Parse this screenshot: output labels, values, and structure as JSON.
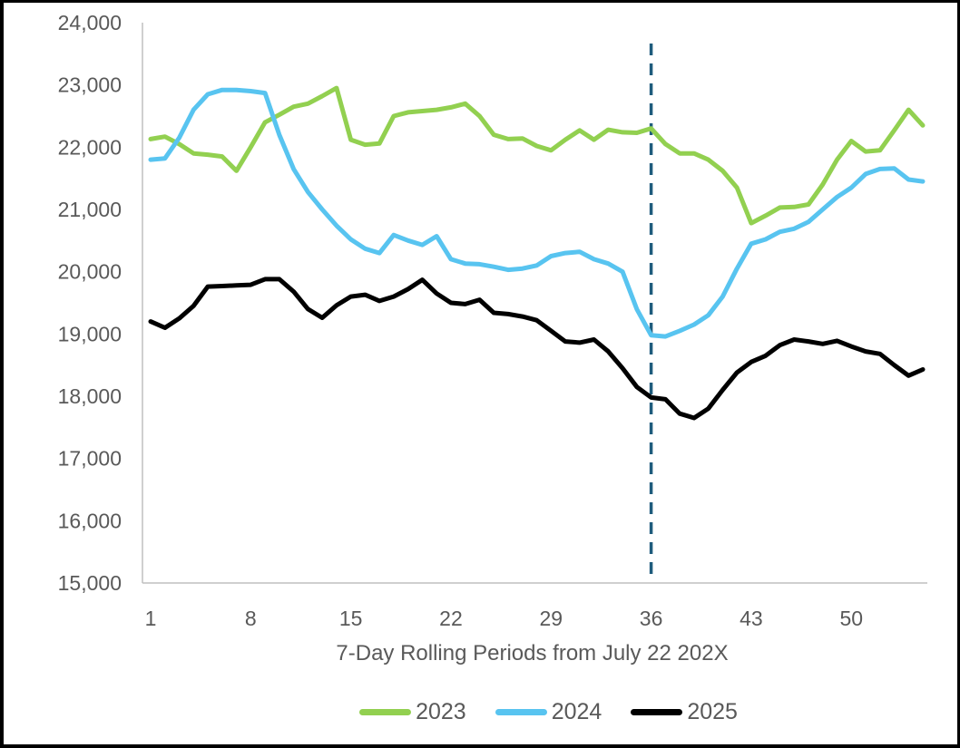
{
  "chart_data": {
    "type": "line",
    "title": "",
    "xlabel": "7-Day Rolling Periods from July 22 202X",
    "ylabel": "",
    "grid": false,
    "legend_position": "bottom",
    "axis_color": "#BFBFBF",
    "text_color": "#595959",
    "ylim": [
      15000,
      24000
    ],
    "y_tick_step": 1000,
    "y_tick_labels": [
      "24,000",
      "23,000",
      "22,000",
      "21,000",
      "20,000",
      "19,000",
      "18,000",
      "17,000",
      "16,000",
      "15,000"
    ],
    "x_ticks": [
      1,
      8,
      15,
      22,
      29,
      36,
      43,
      50
    ],
    "x": [
      1,
      2,
      3,
      4,
      5,
      6,
      7,
      8,
      9,
      10,
      11,
      12,
      13,
      14,
      15,
      16,
      17,
      18,
      19,
      20,
      21,
      22,
      23,
      24,
      25,
      26,
      27,
      28,
      29,
      30,
      31,
      32,
      33,
      34,
      35,
      36,
      37,
      38,
      39,
      40,
      41,
      42,
      43,
      44,
      45,
      46,
      47,
      48,
      49,
      50,
      51,
      52,
      53,
      54,
      55
    ],
    "annotation": {
      "dashed_vline_x": 36,
      "dashed_color": "#1F5C7D"
    },
    "series": [
      {
        "name": "2023",
        "color": "#92D050",
        "values": [
          22130,
          22170,
          22050,
          21900,
          21880,
          21850,
          21620,
          22000,
          22400,
          22520,
          22650,
          22700,
          22820,
          22950,
          22120,
          22040,
          22060,
          22500,
          22560,
          22580,
          22600,
          22640,
          22700,
          22500,
          22200,
          22130,
          22140,
          22020,
          21950,
          22120,
          22270,
          22120,
          22280,
          22240,
          22230,
          22300,
          22050,
          21900,
          21900,
          21800,
          21620,
          21350,
          20780,
          20900,
          21030,
          21040,
          21080,
          21400,
          21800,
          22100,
          21930,
          21950,
          22270,
          22600,
          22350
        ]
      },
      {
        "name": "2024",
        "color": "#58C4F0",
        "values": [
          21800,
          21820,
          22150,
          22600,
          22850,
          22920,
          22920,
          22900,
          22870,
          22200,
          21650,
          21280,
          21000,
          20740,
          20520,
          20370,
          20300,
          20590,
          20500,
          20430,
          20570,
          20200,
          20130,
          20120,
          20080,
          20030,
          20050,
          20100,
          20250,
          20300,
          20320,
          20200,
          20130,
          20000,
          19400,
          18980,
          18960,
          19050,
          19150,
          19300,
          19600,
          20050,
          20450,
          20520,
          20640,
          20690,
          20800,
          21000,
          21200,
          21350,
          21570,
          21650,
          21660,
          21480,
          21450
        ]
      },
      {
        "name": "2025",
        "color": "#000000",
        "values": [
          19200,
          19100,
          19250,
          19450,
          19760,
          19770,
          19780,
          19790,
          19880,
          19880,
          19680,
          19400,
          19260,
          19460,
          19600,
          19630,
          19530,
          19600,
          19720,
          19870,
          19650,
          19500,
          19480,
          19550,
          19340,
          19320,
          19280,
          19220,
          19050,
          18880,
          18860,
          18910,
          18720,
          18450,
          18150,
          17980,
          17950,
          17720,
          17650,
          17800,
          18100,
          18380,
          18550,
          18650,
          18820,
          18910,
          18880,
          18840,
          18890,
          18800,
          18720,
          18680,
          18500,
          18330,
          18430
        ]
      }
    ]
  }
}
